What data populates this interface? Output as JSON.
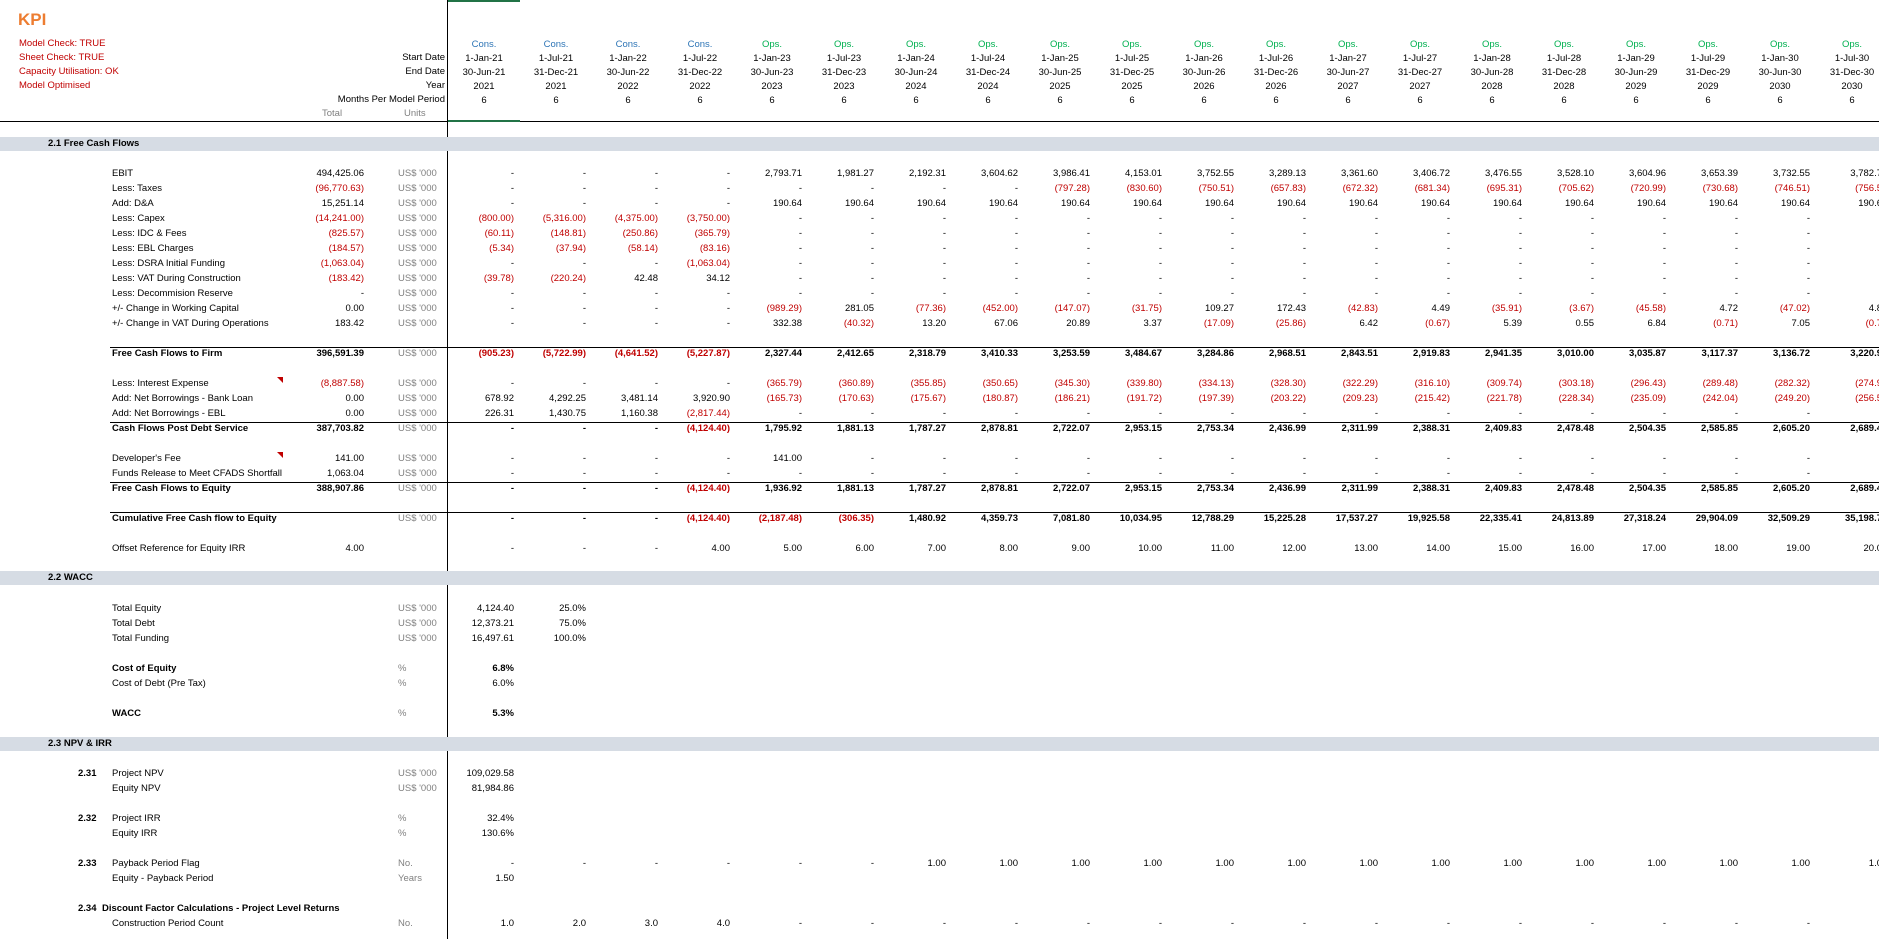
{
  "title": "KPI",
  "checks": [
    "Model Check: TRUE",
    "Sheet Check: TRUE",
    "Capacity Utilisation: OK",
    "Model Optimised"
  ],
  "header_labels": [
    "Start Date",
    "End Date",
    "Year",
    "Months Per Model Period"
  ],
  "sub_headers": {
    "total": "Total",
    "units": "Units"
  },
  "columns": [
    {
      "phase": "Cons.",
      "start": "1-Jan-21",
      "end": "30-Jun-21",
      "year": "2021",
      "months": "6"
    },
    {
      "phase": "Cons.",
      "start": "1-Jul-21",
      "end": "31-Dec-21",
      "year": "2021",
      "months": "6"
    },
    {
      "phase": "Cons.",
      "start": "1-Jan-22",
      "end": "30-Jun-22",
      "year": "2022",
      "months": "6"
    },
    {
      "phase": "Cons.",
      "start": "1-Jul-22",
      "end": "31-Dec-22",
      "year": "2022",
      "months": "6"
    },
    {
      "phase": "Ops.",
      "start": "1-Jan-23",
      "end": "30-Jun-23",
      "year": "2023",
      "months": "6"
    },
    {
      "phase": "Ops.",
      "start": "1-Jul-23",
      "end": "31-Dec-23",
      "year": "2023",
      "months": "6"
    },
    {
      "phase": "Ops.",
      "start": "1-Jan-24",
      "end": "30-Jun-24",
      "year": "2024",
      "months": "6"
    },
    {
      "phase": "Ops.",
      "start": "1-Jul-24",
      "end": "31-Dec-24",
      "year": "2024",
      "months": "6"
    },
    {
      "phase": "Ops.",
      "start": "1-Jan-25",
      "end": "30-Jun-25",
      "year": "2025",
      "months": "6"
    },
    {
      "phase": "Ops.",
      "start": "1-Jul-25",
      "end": "31-Dec-25",
      "year": "2025",
      "months": "6"
    },
    {
      "phase": "Ops.",
      "start": "1-Jan-26",
      "end": "30-Jun-26",
      "year": "2026",
      "months": "6"
    },
    {
      "phase": "Ops.",
      "start": "1-Jul-26",
      "end": "31-Dec-26",
      "year": "2026",
      "months": "6"
    },
    {
      "phase": "Ops.",
      "start": "1-Jan-27",
      "end": "30-Jun-27",
      "year": "2027",
      "months": "6"
    },
    {
      "phase": "Ops.",
      "start": "1-Jul-27",
      "end": "31-Dec-27",
      "year": "2027",
      "months": "6"
    },
    {
      "phase": "Ops.",
      "start": "1-Jan-28",
      "end": "30-Jun-28",
      "year": "2028",
      "months": "6"
    },
    {
      "phase": "Ops.",
      "start": "1-Jul-28",
      "end": "31-Dec-28",
      "year": "2028",
      "months": "6"
    },
    {
      "phase": "Ops.",
      "start": "1-Jan-29",
      "end": "30-Jun-29",
      "year": "2029",
      "months": "6"
    },
    {
      "phase": "Ops.",
      "start": "1-Jul-29",
      "end": "31-Dec-29",
      "year": "2029",
      "months": "6"
    },
    {
      "phase": "Ops.",
      "start": "1-Jan-30",
      "end": "30-Jun-30",
      "year": "2030",
      "months": "6"
    },
    {
      "phase": "Ops.",
      "start": "1-Jul-30",
      "end": "31-Dec-30",
      "year": "2030",
      "months": "6"
    }
  ],
  "sections": [
    {
      "id": "2.1",
      "label": "2.1  Free Cash Flows"
    },
    {
      "id": "2.2",
      "label": "2.2  WACC"
    },
    {
      "id": "2.3",
      "label": "2.3  NPV & IRR"
    }
  ],
  "rows": [
    {
      "label": "EBIT",
      "total": "494,425.06",
      "units": "US$ '000",
      "cells": [
        "-",
        "-",
        "-",
        "-",
        "2,793.71",
        "1,981.27",
        "2,192.31",
        "3,604.62",
        "3,986.41",
        "4,153.01",
        "3,752.55",
        "3,289.13",
        "3,361.60",
        "3,406.72",
        "3,476.55",
        "3,528.10",
        "3,604.96",
        "3,653.39",
        "3,732.55",
        "3,782.7"
      ]
    },
    {
      "label": "Less: Taxes",
      "total": "(96,770.63)",
      "units": "US$ '000",
      "cells": [
        "-",
        "-",
        "-",
        "-",
        "-",
        "-",
        "-",
        "-",
        "(797.28)",
        "(830.60)",
        "(750.51)",
        "(657.83)",
        "(672.32)",
        "(681.34)",
        "(695.31)",
        "(705.62)",
        "(720.99)",
        "(730.68)",
        "(746.51)",
        "(756.5"
      ]
    },
    {
      "label": "Add: D&A",
      "total": "15,251.14",
      "units": "US$ '000",
      "cells": [
        "-",
        "-",
        "-",
        "-",
        "190.64",
        "190.64",
        "190.64",
        "190.64",
        "190.64",
        "190.64",
        "190.64",
        "190.64",
        "190.64",
        "190.64",
        "190.64",
        "190.64",
        "190.64",
        "190.64",
        "190.64",
        "190.6"
      ]
    },
    {
      "label": "Less: Capex",
      "total": "(14,241.00)",
      "units": "US$ '000",
      "cells": [
        "(800.00)",
        "(5,316.00)",
        "(4,375.00)",
        "(3,750.00)",
        "-",
        "-",
        "-",
        "-",
        "-",
        "-",
        "-",
        "-",
        "-",
        "-",
        "-",
        "-",
        "-",
        "-",
        "-",
        "-"
      ]
    },
    {
      "label": "Less: IDC & Fees",
      "total": "(825.57)",
      "units": "US$ '000",
      "cells": [
        "(60.11)",
        "(148.81)",
        "(250.86)",
        "(365.79)",
        "-",
        "-",
        "-",
        "-",
        "-",
        "-",
        "-",
        "-",
        "-",
        "-",
        "-",
        "-",
        "-",
        "-",
        "-",
        "-"
      ]
    },
    {
      "label": "Less: EBL Charges",
      "total": "(184.57)",
      "units": "US$ '000",
      "cells": [
        "(5.34)",
        "(37.94)",
        "(58.14)",
        "(83.16)",
        "-",
        "-",
        "-",
        "-",
        "-",
        "-",
        "-",
        "-",
        "-",
        "-",
        "-",
        "-",
        "-",
        "-",
        "-",
        "-"
      ]
    },
    {
      "label": "Less: DSRA Initial Funding",
      "total": "(1,063.04)",
      "units": "US$ '000",
      "cells": [
        "-",
        "-",
        "-",
        "(1,063.04)",
        "-",
        "-",
        "-",
        "-",
        "-",
        "-",
        "-",
        "-",
        "-",
        "-",
        "-",
        "-",
        "-",
        "-",
        "-",
        "-"
      ]
    },
    {
      "label": "Less: VAT During Construction",
      "total": "(183.42)",
      "units": "US$ '000",
      "cells": [
        "(39.78)",
        "(220.24)",
        "42.48",
        "34.12",
        "-",
        "-",
        "-",
        "-",
        "-",
        "-",
        "-",
        "-",
        "-",
        "-",
        "-",
        "-",
        "-",
        "-",
        "-",
        "-"
      ]
    },
    {
      "label": "Less: Decommision Reserve",
      "total": "-",
      "units": "US$ '000",
      "cells": [
        "-",
        "-",
        "-",
        "-",
        "-",
        "-",
        "-",
        "-",
        "-",
        "-",
        "-",
        "-",
        "-",
        "-",
        "-",
        "-",
        "-",
        "-",
        "-",
        "-"
      ]
    },
    {
      "label": "+/- Change in Working Capital",
      "total": "0.00",
      "units": "US$ '000",
      "cells": [
        "-",
        "-",
        "-",
        "-",
        "(989.29)",
        "281.05",
        "(77.36)",
        "(452.00)",
        "(147.07)",
        "(31.75)",
        "109.27",
        "172.43",
        "(42.83)",
        "4.49",
        "(35.91)",
        "(3.67)",
        "(45.58)",
        "4.72",
        "(47.02)",
        "4.8"
      ]
    },
    {
      "label": "+/- Change in VAT During Operations",
      "total": "183.42",
      "units": "US$ '000",
      "cells": [
        "-",
        "-",
        "-",
        "-",
        "332.38",
        "(40.32)",
        "13.20",
        "67.06",
        "20.89",
        "3.37",
        "(17.09)",
        "(25.86)",
        "6.42",
        "(0.67)",
        "5.39",
        "0.55",
        "6.84",
        "(0.71)",
        "7.05",
        "(0.7"
      ]
    },
    {
      "label": "Free Cash Flows to Firm",
      "total": "396,591.39",
      "units": "US$ '000",
      "cells": [
        "(905.23)",
        "(5,722.99)",
        "(4,641.52)",
        "(5,227.87)",
        "2,327.44",
        "2,412.65",
        "2,318.79",
        "3,410.33",
        "3,253.59",
        "3,484.67",
        "3,284.86",
        "2,968.51",
        "2,843.51",
        "2,919.83",
        "2,941.35",
        "3,010.00",
        "3,035.87",
        "3,117.37",
        "3,136.72",
        "3,220.9"
      ]
    },
    {
      "label": "Less: Interest Expense",
      "total": "(8,887.58)",
      "units": "US$ '000",
      "cells": [
        "-",
        "-",
        "-",
        "-",
        "(365.79)",
        "(360.89)",
        "(355.85)",
        "(350.65)",
        "(345.30)",
        "(339.80)",
        "(334.13)",
        "(328.30)",
        "(322.29)",
        "(316.10)",
        "(309.74)",
        "(303.18)",
        "(296.43)",
        "(289.48)",
        "(282.32)",
        "(274.9"
      ]
    },
    {
      "label": "Add: Net Borrowings - Bank Loan",
      "total": "0.00",
      "units": "US$ '000",
      "cells": [
        "678.92",
        "4,292.25",
        "3,481.14",
        "3,920.90",
        "(165.73)",
        "(170.63)",
        "(175.67)",
        "(180.87)",
        "(186.21)",
        "(191.72)",
        "(197.39)",
        "(203.22)",
        "(209.23)",
        "(215.42)",
        "(221.78)",
        "(228.34)",
        "(235.09)",
        "(242.04)",
        "(249.20)",
        "(256.5"
      ]
    },
    {
      "label": "Add: Net Borrowings - EBL",
      "total": "0.00",
      "units": "US$ '000",
      "cells": [
        "226.31",
        "1,430.75",
        "1,160.38",
        "(2,817.44)",
        "-",
        "-",
        "-",
        "-",
        "-",
        "-",
        "-",
        "-",
        "-",
        "-",
        "-",
        "-",
        "-",
        "-",
        "-",
        "-"
      ]
    },
    {
      "label": "Cash Flows Post Debt Service",
      "total": "387,703.82",
      "units": "US$ '000",
      "cells": [
        "-",
        "-",
        "-",
        "(4,124.40)",
        "1,795.92",
        "1,881.13",
        "1,787.27",
        "2,878.81",
        "2,722.07",
        "2,953.15",
        "2,753.34",
        "2,436.99",
        "2,311.99",
        "2,388.31",
        "2,409.83",
        "2,478.48",
        "2,504.35",
        "2,585.85",
        "2,605.20",
        "2,689.4"
      ]
    },
    {
      "label": "Developer's Fee",
      "total": "141.00",
      "units": "US$ '000",
      "cells": [
        "-",
        "-",
        "-",
        "-",
        "141.00",
        "-",
        "-",
        "-",
        "-",
        "-",
        "-",
        "-",
        "-",
        "-",
        "-",
        "-",
        "-",
        "-",
        "-",
        "-"
      ]
    },
    {
      "label": "Funds Release to Meet CFADS Shortfall",
      "total": "1,063.04",
      "units": "US$ '000",
      "cells": [
        "-",
        "-",
        "-",
        "-",
        "-",
        "-",
        "-",
        "-",
        "-",
        "-",
        "-",
        "-",
        "-",
        "-",
        "-",
        "-",
        "-",
        "-",
        "-",
        "-"
      ]
    },
    {
      "label": "Free Cash Flows to Equity",
      "total": "388,907.86",
      "units": "US$ '000",
      "cells": [
        "-",
        "-",
        "-",
        "(4,124.40)",
        "1,936.92",
        "1,881.13",
        "1,787.27",
        "2,878.81",
        "2,722.07",
        "2,953.15",
        "2,753.34",
        "2,436.99",
        "2,311.99",
        "2,388.31",
        "2,409.83",
        "2,478.48",
        "2,504.35",
        "2,585.85",
        "2,605.20",
        "2,689.4"
      ]
    },
    {
      "label": "Cumulative Free Cash flow to Equity",
      "total": "",
      "units": "US$ '000",
      "cells": [
        "-",
        "-",
        "-",
        "(4,124.40)",
        "(2,187.48)",
        "(306.35)",
        "1,480.92",
        "4,359.73",
        "7,081.80",
        "10,034.95",
        "12,788.29",
        "15,225.28",
        "17,537.27",
        "19,925.58",
        "22,335.41",
        "24,813.89",
        "27,318.24",
        "29,904.09",
        "32,509.29",
        "35,198.7"
      ]
    },
    {
      "label": "Offset Reference for Equity IRR",
      "total": "4.00",
      "units": "",
      "cells": [
        "-",
        "-",
        "-",
        "4.00",
        "5.00",
        "6.00",
        "7.00",
        "8.00",
        "9.00",
        "10.00",
        "11.00",
        "12.00",
        "13.00",
        "14.00",
        "15.00",
        "16.00",
        "17.00",
        "18.00",
        "19.00",
        "20.0"
      ]
    },
    {
      "label": "Total Equity",
      "total": "",
      "units": "US$ '000",
      "cells": [
        "4,124.40",
        "25.0%"
      ]
    },
    {
      "label": "Total Debt",
      "total": "",
      "units": "US$ '000",
      "cells": [
        "12,373.21",
        "75.0%"
      ]
    },
    {
      "label": "Total Funding",
      "total": "",
      "units": "US$ '000",
      "cells": [
        "16,497.61",
        "100.0%"
      ]
    },
    {
      "label": "Cost of Equity",
      "total": "",
      "units": "%",
      "cells": [
        "6.8%"
      ]
    },
    {
      "label": "Cost of Debt (Pre Tax)",
      "total": "",
      "units": "%",
      "cells": [
        "6.0%"
      ]
    },
    {
      "label": "WACC",
      "total": "",
      "units": "%",
      "cells": [
        "5.3%"
      ]
    },
    {
      "num": "2.31",
      "label": "Project NPV",
      "total": "",
      "units": "US$ '000",
      "cells": [
        "109,029.58"
      ]
    },
    {
      "label": "Equity NPV",
      "total": "",
      "units": "US$ '000",
      "cells": [
        "81,984.86"
      ]
    },
    {
      "num": "2.32",
      "label": "Project IRR",
      "total": "",
      "units": "%",
      "cells": [
        "32.4%"
      ]
    },
    {
      "label": "Equity IRR",
      "total": "",
      "units": "%",
      "cells": [
        "130.6%"
      ]
    },
    {
      "num": "2.33",
      "label": "Payback Period Flag",
      "total": "",
      "units": "No.",
      "cells": [
        "-",
        "-",
        "-",
        "-",
        "-",
        "-",
        "1.00",
        "1.00",
        "1.00",
        "1.00",
        "1.00",
        "1.00",
        "1.00",
        "1.00",
        "1.00",
        "1.00",
        "1.00",
        "1.00",
        "1.00",
        "1.0"
      ]
    },
    {
      "label": "Equity - Payback Period",
      "total": "",
      "units": "Years",
      "cells": [
        "1.50"
      ]
    },
    {
      "num": "2.34",
      "label": "Discount Factor Calculations - Project Level Returns",
      "total": "",
      "units": "",
      "cells": []
    },
    {
      "label": "Construction Period Count",
      "total": "",
      "units": "No.",
      "cells": [
        "1.0",
        "2.0",
        "3.0",
        "4.0",
        "-",
        "-",
        "-",
        "-",
        "-",
        "-",
        "-",
        "-",
        "-",
        "-",
        "-",
        "-",
        "-",
        "-",
        "-",
        "-"
      ]
    }
  ]
}
